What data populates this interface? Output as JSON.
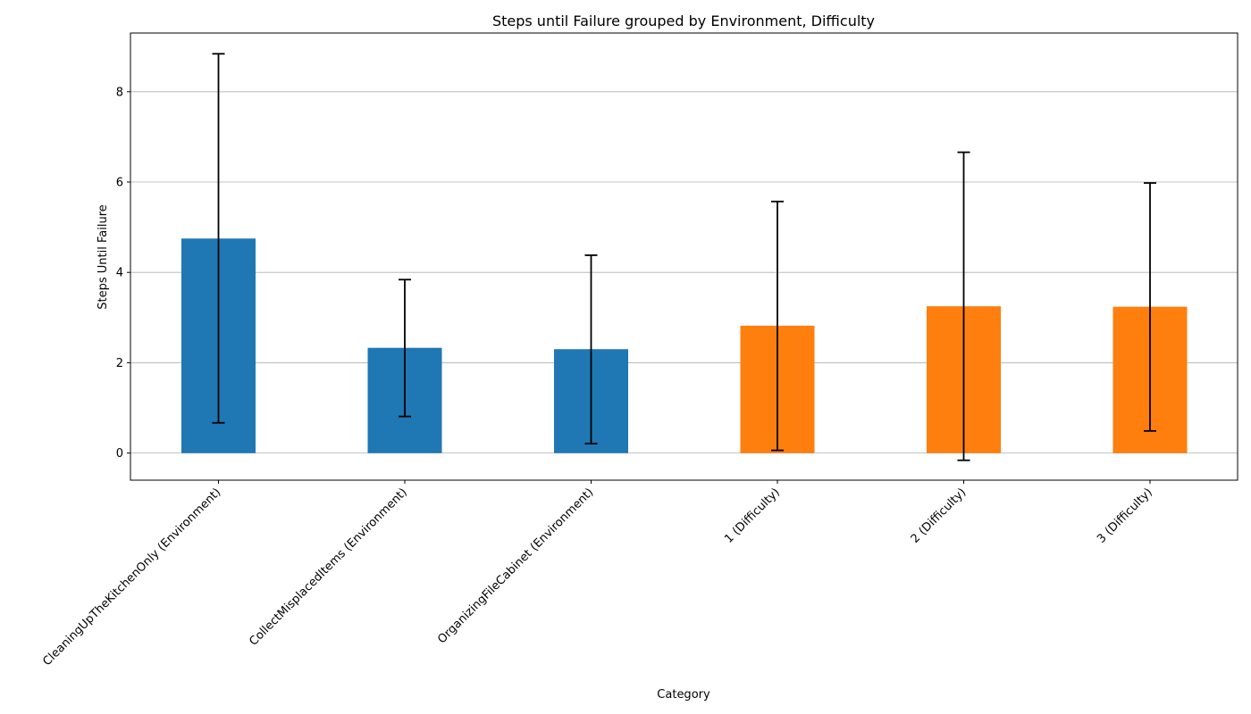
{
  "chart_data": {
    "type": "bar",
    "title": "Steps until Failure grouped by Environment, Difficulty",
    "xlabel": "Category",
    "ylabel": "Steps Until Failure",
    "categories": [
      "CleaningUpTheKitchenOnly (Environment)",
      "CollectMisplacedItems (Environment)",
      "OrganizingFileCabinet (Environment)",
      "1 (Difficulty)",
      "2 (Difficulty)",
      "3 (Difficulty)"
    ],
    "values": [
      4.75,
      2.33,
      2.3,
      2.82,
      3.25,
      3.24
    ],
    "error_low": [
      0.67,
      0.81,
      0.21,
      0.06,
      -0.16,
      0.49
    ],
    "error_high": [
      8.84,
      3.84,
      4.38,
      5.57,
      6.66,
      5.98
    ],
    "groups": [
      "Environment",
      "Environment",
      "Environment",
      "Difficulty",
      "Difficulty",
      "Difficulty"
    ],
    "colors": {
      "Environment": "#1f77b4",
      "Difficulty": "#ff7f0e"
    },
    "ylim": [
      -0.6,
      9.3
    ],
    "yticks": [
      0,
      2,
      4,
      6,
      8
    ],
    "grid": "y"
  }
}
